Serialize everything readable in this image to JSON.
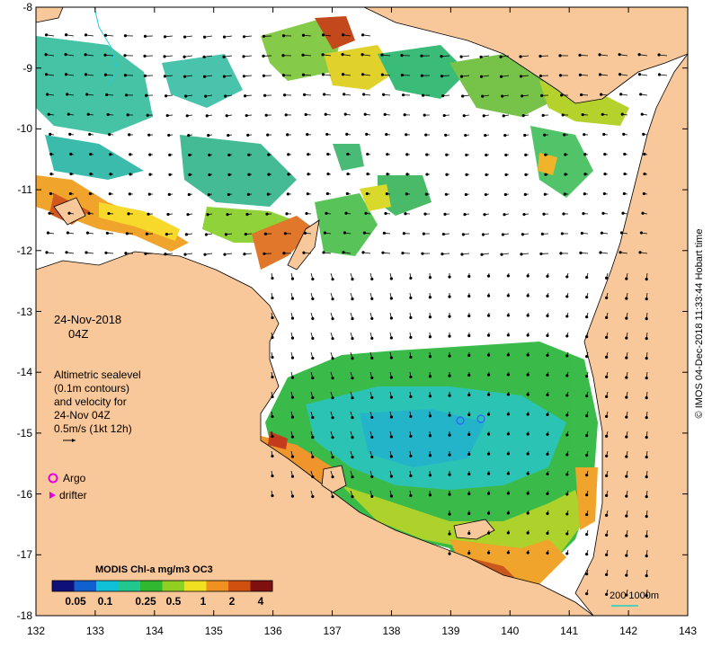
{
  "map": {
    "date": "24-Nov-2018",
    "time": "04Z",
    "altimetry_lines": [
      "Altimetric sealevel",
      "(0.1m contours)",
      "and velocity for",
      "24-Nov 04Z"
    ],
    "velocity_scale_label": "0.5m/s (1kt 12h)",
    "legend": {
      "argo_label": "Argo",
      "drifter_label": "drifter",
      "argo_color": "#e000e0",
      "drifter_color": "#e000e0"
    },
    "colorbar": {
      "title": "MODIS Chl-a mg/m3 OC3",
      "ticks": [
        "0.05",
        "0.1",
        "0.25",
        "0.5",
        "1",
        "2",
        "4"
      ],
      "colors": [
        "#10107a",
        "#1060d0",
        "#10c0d8",
        "#20c890",
        "#30b830",
        "#90d020",
        "#f0e020",
        "#f09020",
        "#d05010",
        "#801010"
      ]
    },
    "scale_bar": {
      "label": "200  1000m",
      "color": "#20d0c0"
    },
    "credit": "© IMOS 04-Dec-2018 11:33:44 Hobart time",
    "x_ticks": [
      "132",
      "133",
      "134",
      "135",
      "136",
      "137",
      "138",
      "139",
      "140",
      "141",
      "142",
      "143"
    ],
    "y_ticks": [
      "-8",
      "-9",
      "-10",
      "-11",
      "-12",
      "-13",
      "-14",
      "-15",
      "-16",
      "-17",
      "-18"
    ],
    "land_color": "#f8c89a",
    "ocean_color": "#ffffff"
  }
}
